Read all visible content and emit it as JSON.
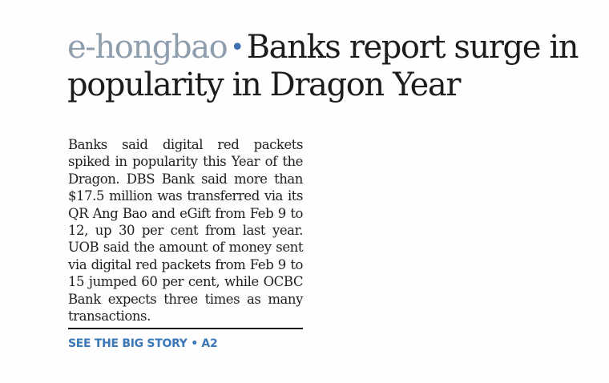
{
  "article": {
    "kicker": "e-hongbao",
    "separator": "•",
    "headline": "Banks report surge in popularity in Dragon Year",
    "body": "Banks said digital red packets spiked in popularity this Year of the Dragon. DBS Bank said more than $17.5 million was transferred via its QR Ang Bao and eGift from Feb 9 to 12, up 30 per cent from last year. UOB said the amount of money sent via digital red packets from Feb 9 to 15 jumped 60 per cent, while OCBC Bank expects three times as many transactions.",
    "see_story": "SEE THE BIG STORY • A2"
  },
  "colors": {
    "kicker": "#8e9ead",
    "bullet": "#3f6fb0",
    "link": "#3a78b8",
    "text": "#1c1c1c"
  }
}
